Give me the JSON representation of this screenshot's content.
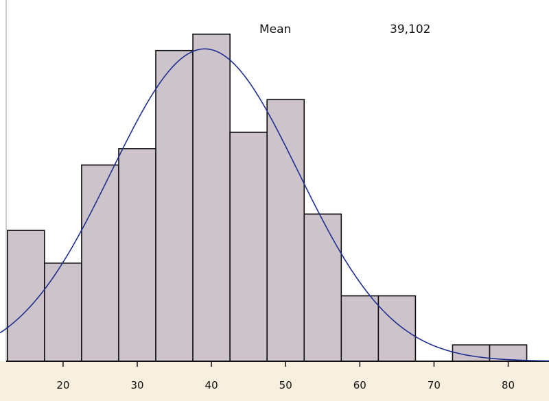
{
  "chart_data": {
    "type": "bar",
    "subtype": "histogram-with-normal-curve",
    "title": "",
    "xlabel": "",
    "ylabel": "",
    "bin_width": 5,
    "bins": [
      {
        "x0": 12.5,
        "x1": 17.5,
        "count": 8
      },
      {
        "x0": 17.5,
        "x1": 22.5,
        "count": 6
      },
      {
        "x0": 22.5,
        "x1": 27.5,
        "count": 12
      },
      {
        "x0": 27.5,
        "x1": 32.5,
        "count": 13
      },
      {
        "x0": 32.5,
        "x1": 37.5,
        "count": 19
      },
      {
        "x0": 37.5,
        "x1": 42.5,
        "count": 20
      },
      {
        "x0": 42.5,
        "x1": 47.5,
        "count": 14
      },
      {
        "x0": 47.5,
        "x1": 52.5,
        "count": 16
      },
      {
        "x0": 52.5,
        "x1": 57.5,
        "count": 9
      },
      {
        "x0": 57.5,
        "x1": 62.5,
        "count": 4
      },
      {
        "x0": 62.5,
        "x1": 67.5,
        "count": 4
      },
      {
        "x0": 67.5,
        "x1": 72.5,
        "count": 0
      },
      {
        "x0": 72.5,
        "x1": 77.5,
        "count": 1
      },
      {
        "x0": 77.5,
        "x1": 82.5,
        "count": 1
      }
    ],
    "xlim": [
      11.5,
      85.5
    ],
    "ylim": [
      0,
      21
    ],
    "x_ticks": [
      20,
      30,
      40,
      50,
      60,
      70,
      80
    ],
    "x_tick_labels": [
      "20",
      "30",
      "40",
      "50",
      "60",
      "70",
      "80"
    ],
    "normal_curve": {
      "mean": 39.102,
      "sd": 12.6,
      "peak_count": 19.1
    },
    "stats": [
      {
        "label": "Mean",
        "value": "39,102"
      }
    ],
    "grid": false,
    "colors": {
      "bar_fill": "#cdc3cb",
      "bar_stroke": "#111111",
      "curve": "#1f2f8f",
      "axis_strip": "#f8efdf",
      "plot_background": "#ffffff"
    }
  }
}
